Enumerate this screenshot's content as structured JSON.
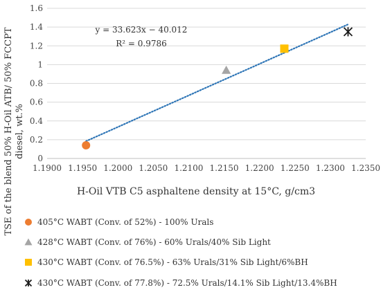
{
  "chart_data": {
    "type": "scatter",
    "xlabel": "H-Oil VTB C5 asphaltene density at 15°C, g/cm3",
    "ylabel_lines": [
      "TSE of the blend 50% H-Oil ATB/ 50% FCCPT",
      "diesel, wt.%"
    ],
    "xlim": [
      1.19,
      1.235
    ],
    "ylim": [
      0,
      1.6
    ],
    "xticks": [
      1.19,
      1.195,
      1.2,
      1.205,
      1.21,
      1.215,
      1.22,
      1.225,
      1.23,
      1.235
    ],
    "xtick_labels": [
      "1.1900",
      "1.1950",
      "1.2000",
      "1.2050",
      "1.2100",
      "1.2150",
      "1.2200",
      "1.2250",
      "1.2300",
      "1.2350"
    ],
    "yticks": [
      0,
      0.2,
      0.4,
      0.6,
      0.8,
      1,
      1.2,
      1.4,
      1.6
    ],
    "ytick_labels": [
      "0",
      "0.2",
      "0.4",
      "0.6",
      "0.8",
      "1",
      "1.2",
      "1.4",
      "1.6"
    ],
    "grid": "horizontal",
    "series": [
      {
        "name": "405°C WABT (Conv. of 52%) - 100% Urals",
        "marker": "circle",
        "color": "#ED7D31",
        "x": 1.1955,
        "y": 0.14
      },
      {
        "name": "428°C WABT (Conv. of 76%) - 60% Urals/40% Sib Light",
        "marker": "triangle",
        "color": "#A5A5A5",
        "x": 1.2153,
        "y": 0.94
      },
      {
        "name": "430°C WABT (Conv. of 76.5%) - 63% Urals/31% Sib Light/6%BH",
        "marker": "square",
        "color": "#FFC000",
        "x": 1.2235,
        "y": 1.17
      },
      {
        "name": "430°C WABT (Conv. of 77.8%) - 72.5% Urals/14.1% Sib Light/13.4%BH",
        "marker": "star",
        "color": "#1a1a1a",
        "x": 1.2325,
        "y": 1.35
      }
    ],
    "trendline": {
      "slope": 33.623,
      "intercept": -40.012,
      "x_range": [
        1.1955,
        1.2325
      ],
      "color": "#2E75B6",
      "style": "dotted",
      "equation": "y = 33.623x − 40.012",
      "r2_label": "R² = 0.9786"
    },
    "legend_position": "bottom"
  }
}
